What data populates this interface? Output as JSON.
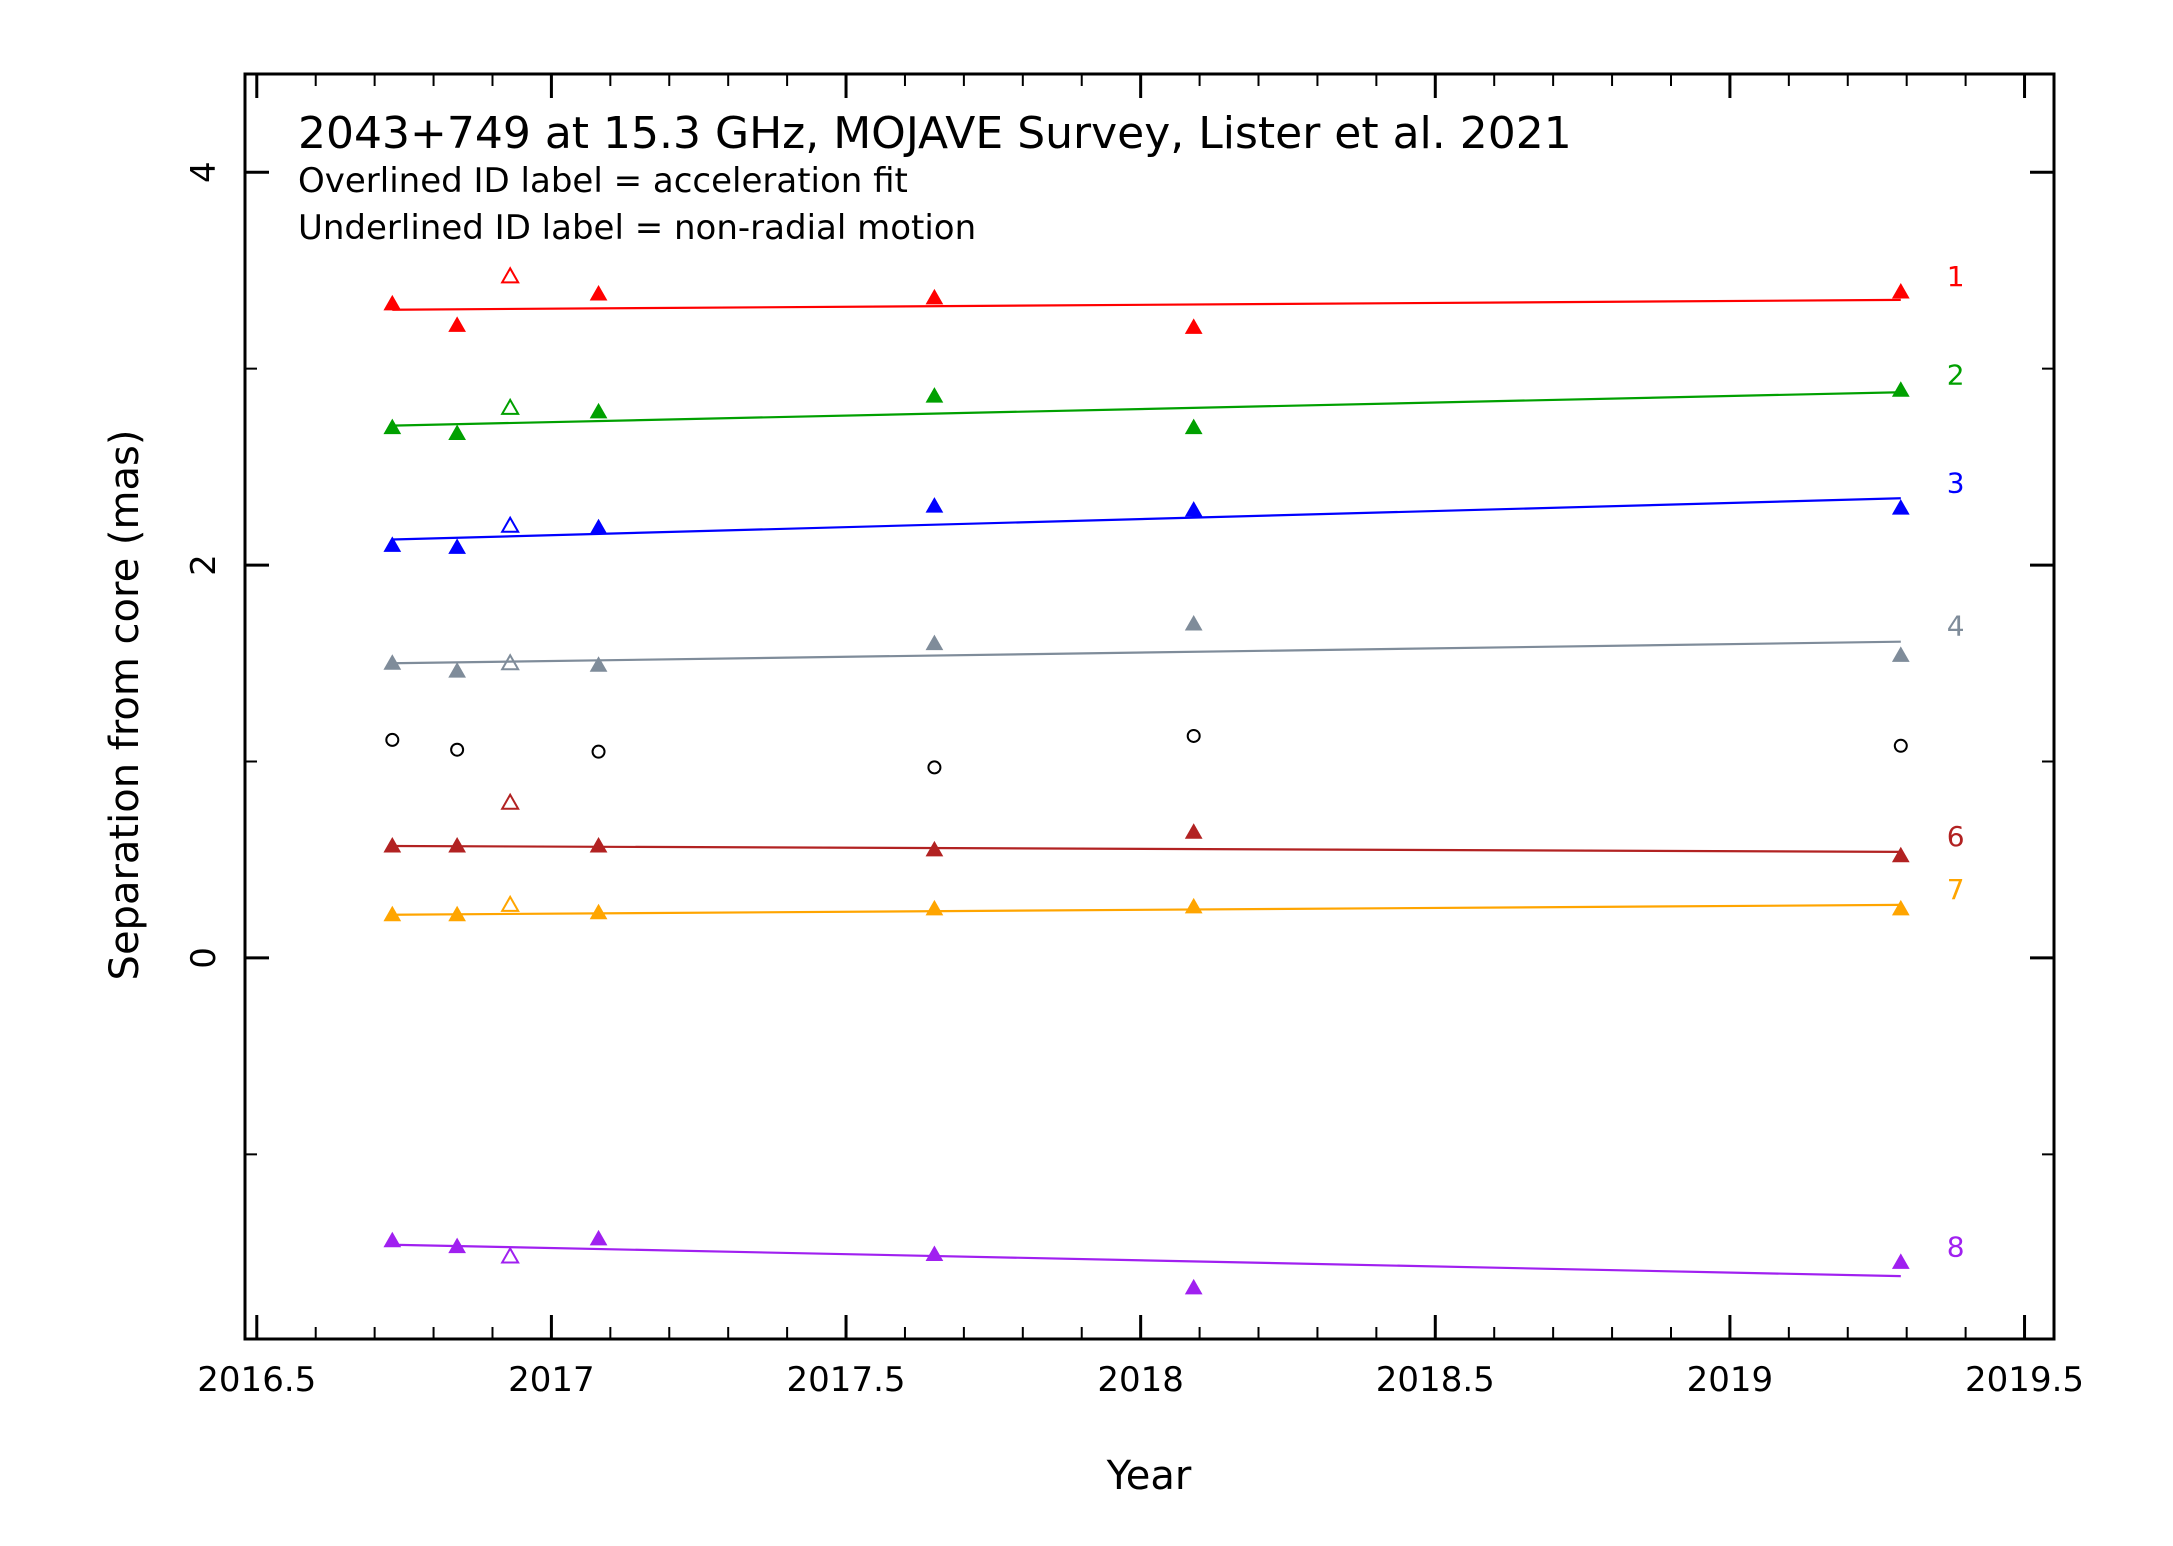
{
  "chart_data": {
    "type": "scatter",
    "title": "2043+749 at 15.3 GHz, MOJAVE Survey, Lister et al. 2021",
    "notes": [
      "Overlined ID label = acceleration fit",
      "Underlined ID label = non-radial motion"
    ],
    "xlabel": "Year",
    "ylabel": "Separation from core (mas)",
    "xlim": [
      2016.48,
      2019.55
    ],
    "ylim": [
      -1.94,
      4.5
    ],
    "xticks": [
      2016.5,
      2017,
      2017.5,
      2018,
      2018.5,
      2019,
      2019.5
    ],
    "xtick_labels": [
      "2016.5",
      "2017",
      "2017.5",
      "2018",
      "2018.5",
      "2019",
      "2019.5"
    ],
    "yticks": [
      0,
      2,
      4
    ],
    "ytick_labels": [
      "0",
      "2",
      "4"
    ],
    "grid": false,
    "series": [
      {
        "name": "1",
        "color": "#ff0000",
        "x": [
          2016.73,
          2016.84,
          2017.08,
          2017.65,
          2018.09,
          2019.29
        ],
        "y": [
          3.33,
          3.22,
          3.38,
          3.36,
          3.21,
          3.39
        ],
        "open_x": [
          2016.93
        ],
        "open_y": [
          3.47
        ],
        "fit": [
          [
            2016.73,
            3.3
          ],
          [
            2019.29,
            3.35
          ]
        ]
      },
      {
        "name": "2",
        "color": "#00a000",
        "x": [
          2016.73,
          2016.84,
          2017.08,
          2017.65,
          2018.09,
          2019.29
        ],
        "y": [
          2.7,
          2.67,
          2.78,
          2.86,
          2.7,
          2.89
        ],
        "open_x": [
          2016.93
        ],
        "open_y": [
          2.8
        ],
        "fit": [
          [
            2016.73,
            2.71
          ],
          [
            2019.29,
            2.88
          ]
        ]
      },
      {
        "name": "3",
        "color": "#0000ff",
        "x": [
          2016.73,
          2016.84,
          2017.08,
          2017.65,
          2018.09,
          2019.29
        ],
        "y": [
          2.1,
          2.09,
          2.19,
          2.3,
          2.28,
          2.29
        ],
        "open_x": [
          2016.93
        ],
        "open_y": [
          2.2
        ],
        "fit": [
          [
            2016.73,
            2.13
          ],
          [
            2019.29,
            2.34
          ]
        ]
      },
      {
        "name": "4",
        "color": "#7f8c9a",
        "x": [
          2016.73,
          2016.84,
          2017.08,
          2017.65,
          2018.09,
          2019.29
        ],
        "y": [
          1.5,
          1.46,
          1.49,
          1.6,
          1.7,
          1.54
        ],
        "open_x": [
          2016.93
        ],
        "open_y": [
          1.5
        ],
        "fit": [
          [
            2016.73,
            1.5
          ],
          [
            2019.29,
            1.61
          ]
        ]
      },
      {
        "name": "",
        "color": "#000000",
        "marker": "circle",
        "x": [
          2016.73,
          2016.84,
          2017.08,
          2017.65,
          2018.09,
          2019.29
        ],
        "y": [
          1.11,
          1.06,
          1.05,
          0.97,
          1.13,
          1.08
        ],
        "open_x": [],
        "open_y": [],
        "fit": []
      },
      {
        "name": "6",
        "color": "#b22222",
        "x": [
          2016.73,
          2016.84,
          2017.08,
          2017.65,
          2018.09,
          2019.29
        ],
        "y": [
          0.57,
          0.57,
          0.57,
          0.55,
          0.64,
          0.52
        ],
        "open_x": [
          2016.93
        ],
        "open_y": [
          0.79
        ],
        "fit": [
          [
            2016.73,
            0.57
          ],
          [
            2019.29,
            0.54
          ]
        ]
      },
      {
        "name": "7",
        "color": "#ffa500",
        "x": [
          2016.73,
          2016.84,
          2017.08,
          2017.65,
          2018.09,
          2019.29
        ],
        "y": [
          0.22,
          0.22,
          0.23,
          0.25,
          0.26,
          0.25
        ],
        "open_x": [
          2016.93
        ],
        "open_y": [
          0.27
        ],
        "fit": [
          [
            2016.73,
            0.22
          ],
          [
            2019.29,
            0.27
          ]
        ]
      },
      {
        "name": "8",
        "color": "#a020f0",
        "x": [
          2016.73,
          2016.84,
          2017.08,
          2017.65,
          2018.09,
          2019.29
        ],
        "y": [
          -1.44,
          -1.47,
          -1.43,
          -1.51,
          -1.68,
          -1.55
        ],
        "open_x": [
          2016.93
        ],
        "open_y": [
          -1.52
        ],
        "fit": [
          [
            2016.73,
            -1.46
          ],
          [
            2019.29,
            -1.62
          ]
        ]
      }
    ]
  }
}
